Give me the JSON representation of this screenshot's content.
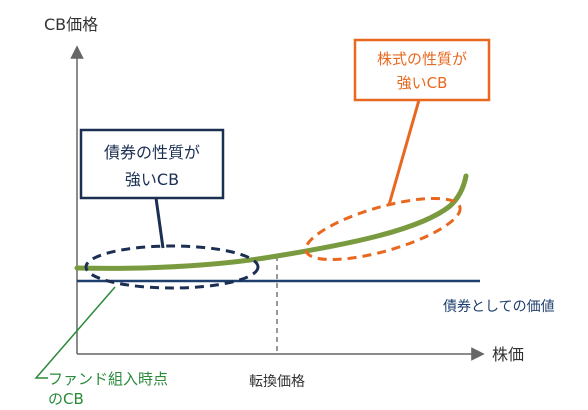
{
  "axes": {
    "y_label": "CB価格",
    "x_label": "株価",
    "conversion_price_label": "転換価格"
  },
  "bond_value_line": {
    "label": "債券としての価値",
    "color": "#1f3f6e"
  },
  "cb_price_curve": {
    "color": "#7a9a3f"
  },
  "callout_bond": {
    "line1": "債券の性質が",
    "line2": "強いCB",
    "color": "#1f3f6e"
  },
  "callout_stock": {
    "line1": "株式の性質が",
    "line2": "強いCB",
    "color": "#e8681f"
  },
  "fund_entry": {
    "line1": "ファンド組入時点",
    "line2": "のCB",
    "color": "#2a8a3a"
  }
}
